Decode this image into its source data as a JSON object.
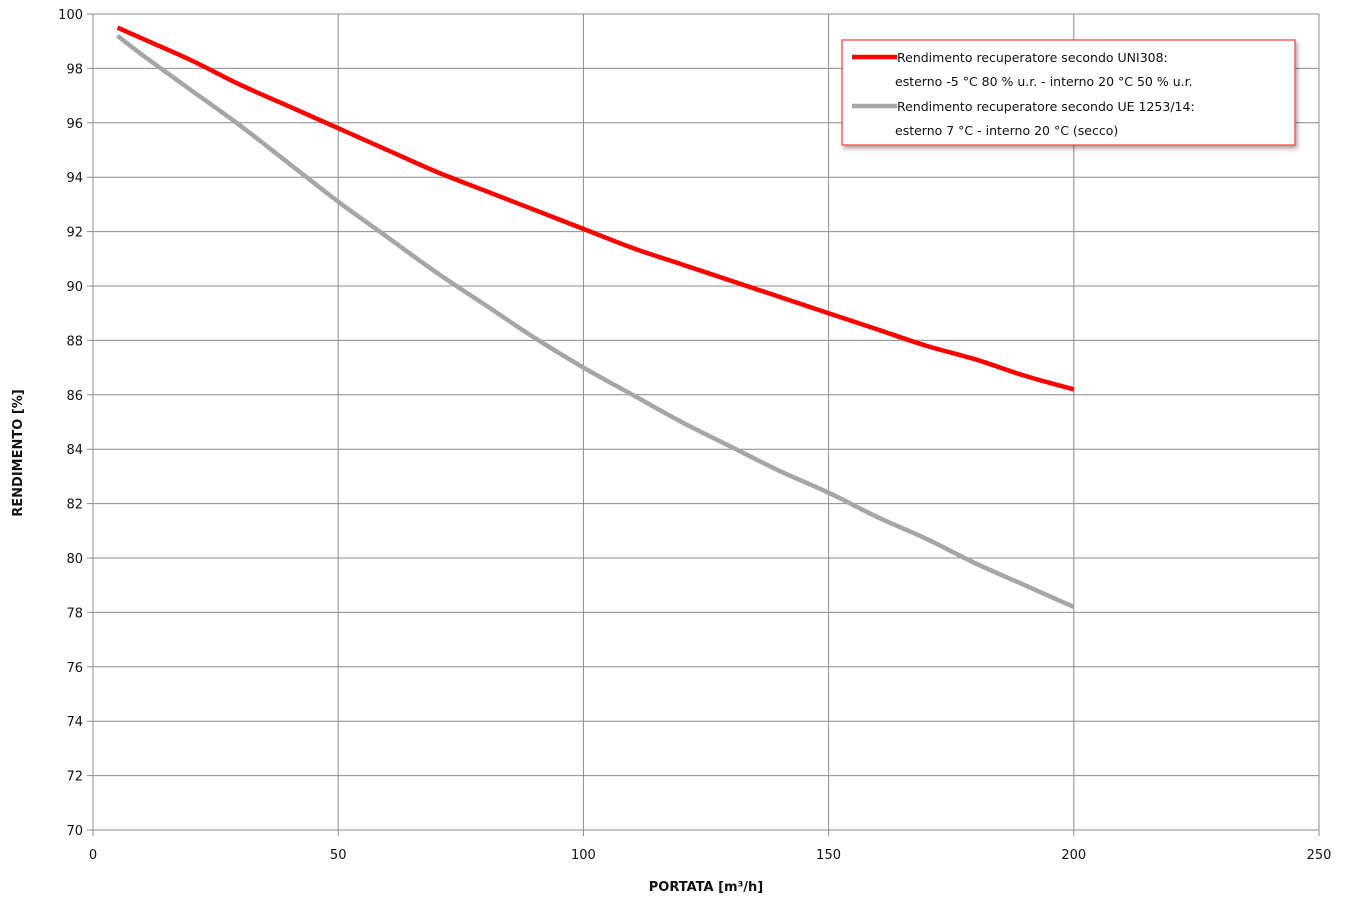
{
  "chart_data": {
    "type": "line",
    "title": "",
    "xlabel": "PORTATA [m³/h]",
    "ylabel": "RENDIMENTO [%]",
    "xlim": [
      0,
      250
    ],
    "ylim": [
      70,
      100
    ],
    "xticks": [
      0,
      50,
      100,
      150,
      200,
      250
    ],
    "yticks": [
      70,
      72,
      74,
      76,
      78,
      80,
      82,
      84,
      86,
      88,
      90,
      92,
      94,
      96,
      98,
      100
    ],
    "grid": true,
    "legend_position": "top-right",
    "series": [
      {
        "name_lines": [
          "Rendimento recuperatore secondo UNI308:",
          "esterno -5 °C 80 % u.r. - interno 20 °C 50 % u.r."
        ],
        "color": "#ff0000",
        "x": [
          5,
          10,
          20,
          30,
          40,
          50,
          60,
          70,
          80,
          90,
          100,
          110,
          120,
          130,
          140,
          150,
          160,
          170,
          180,
          190,
          200
        ],
        "y": [
          99.5,
          99.1,
          98.3,
          97.4,
          96.6,
          95.8,
          95.0,
          94.2,
          93.5,
          92.8,
          92.1,
          91.4,
          90.8,
          90.2,
          89.6,
          89.0,
          88.4,
          87.8,
          87.3,
          86.7,
          86.2
        ]
      },
      {
        "name_lines": [
          "Rendimento recuperatore      secondo UE 1253/14:",
          "esterno 7 °C - interno 20 °C (secco)"
        ],
        "color": "#a6a6a6",
        "x": [
          5,
          10,
          20,
          30,
          40,
          50,
          60,
          70,
          80,
          90,
          100,
          110,
          120,
          130,
          140,
          150,
          160,
          170,
          180,
          190,
          200
        ],
        "y": [
          99.2,
          98.5,
          97.2,
          95.9,
          94.5,
          93.1,
          91.8,
          90.5,
          89.3,
          88.1,
          87.0,
          86.0,
          85.0,
          84.1,
          83.2,
          82.4,
          81.5,
          80.7,
          79.8,
          79.0,
          78.2
        ]
      }
    ]
  }
}
